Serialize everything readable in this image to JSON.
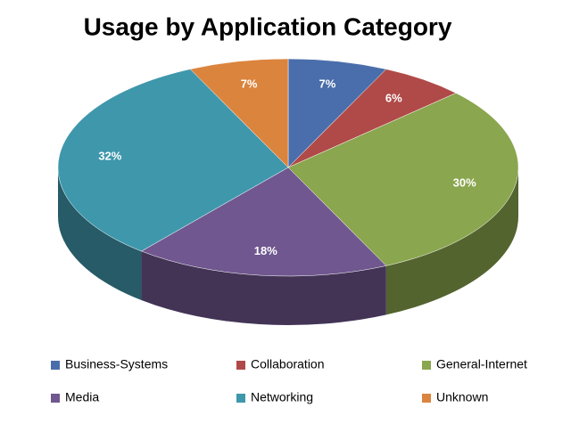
{
  "chart_data": {
    "type": "pie",
    "title": "Usage by Application Category",
    "categories": [
      "Business-Systems",
      "Collaboration",
      "General-Internet",
      "Media",
      "Networking",
      "Unknown"
    ],
    "values": [
      7,
      6,
      30,
      18,
      32,
      7
    ],
    "value_labels": [
      "7%",
      "6%",
      "30%",
      "18%",
      "32%",
      "7%"
    ],
    "colors": [
      "#4a6eab",
      "#b04a48",
      "#8aa64e",
      "#70578f",
      "#3f97ac",
      "#db843d"
    ]
  }
}
